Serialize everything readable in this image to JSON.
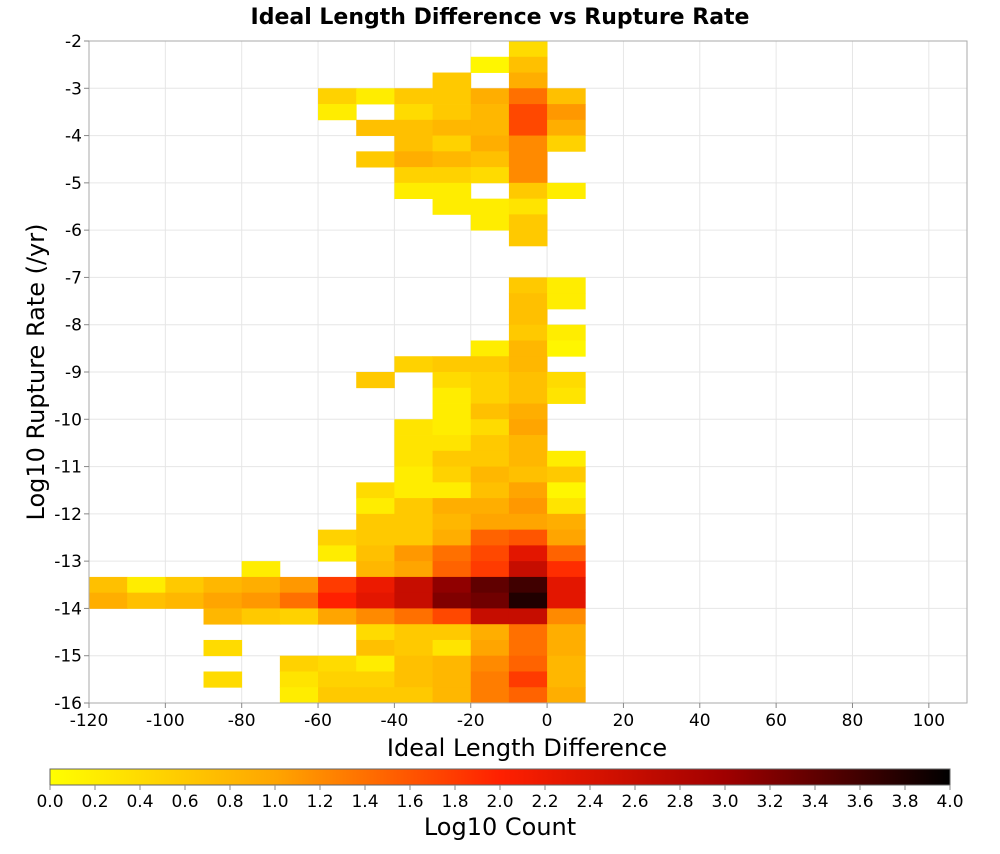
{
  "chart_data": {
    "type": "heatmap",
    "title": "Ideal Length Difference vs Rupture Rate",
    "xlabel": "Ideal Length Difference",
    "ylabel": "Log10 Rupture Rate (/yr)",
    "xlim": [
      -120,
      110
    ],
    "ylim": [
      -16,
      -2
    ],
    "xticks": [
      -120,
      -100,
      -80,
      -60,
      -40,
      -20,
      0,
      20,
      40,
      60,
      80,
      100
    ],
    "yticks": [
      -2,
      -3,
      -4,
      -5,
      -6,
      -7,
      -8,
      -9,
      -10,
      -11,
      -12,
      -13,
      -14,
      -15,
      -16
    ],
    "grid": true,
    "x_bin_width": 10,
    "y_bin_height": 0.3333,
    "colorbar": {
      "label": "Log10 Count",
      "range": [
        0.0,
        4.0
      ],
      "ticks": [
        "0.0",
        "0.2",
        "0.4",
        "0.6",
        "0.8",
        "1.0",
        "1.2",
        "1.4",
        "1.6",
        "1.8",
        "2.0",
        "2.2",
        "2.4",
        "2.6",
        "2.8",
        "3.0",
        "3.2",
        "3.4",
        "3.6",
        "3.8",
        "4.0"
      ],
      "colors": [
        "#ffff00",
        "#ffa500",
        "#ff2000",
        "#a00000",
        "#000000"
      ]
    },
    "cells": [
      [
        -10,
        -2.333,
        0.4
      ],
      [
        -20,
        -2.667,
        0.1
      ],
      [
        -10,
        -2.667,
        0.7
      ],
      [
        -30,
        -3.0,
        0.6
      ],
      [
        -10,
        -3.0,
        0.9
      ],
      [
        -60,
        -3.333,
        0.5
      ],
      [
        -50,
        -3.333,
        0.2
      ],
      [
        -40,
        -3.333,
        0.6
      ],
      [
        -30,
        -3.333,
        0.6
      ],
      [
        -20,
        -3.333,
        0.9
      ],
      [
        -10,
        -3.333,
        1.4
      ],
      [
        0,
        -3.333,
        0.7
      ],
      [
        -60,
        -3.667,
        0.2
      ],
      [
        -40,
        -3.667,
        0.4
      ],
      [
        -30,
        -3.667,
        0.6
      ],
      [
        -20,
        -3.667,
        0.8
      ],
      [
        -10,
        -3.667,
        1.7
      ],
      [
        0,
        -3.667,
        1.1
      ],
      [
        -50,
        -4.0,
        0.7
      ],
      [
        -40,
        -4.0,
        0.7
      ],
      [
        -30,
        -4.0,
        0.8
      ],
      [
        -20,
        -4.0,
        0.8
      ],
      [
        -10,
        -4.0,
        1.7
      ],
      [
        0,
        -4.0,
        0.9
      ],
      [
        -40,
        -4.333,
        0.7
      ],
      [
        -30,
        -4.333,
        0.5
      ],
      [
        -20,
        -4.333,
        0.9
      ],
      [
        -10,
        -4.333,
        1.2
      ],
      [
        0,
        -4.333,
        0.5
      ],
      [
        -50,
        -4.667,
        0.6
      ],
      [
        -40,
        -4.667,
        0.9
      ],
      [
        -30,
        -4.667,
        0.8
      ],
      [
        -20,
        -4.667,
        0.7
      ],
      [
        -10,
        -4.667,
        1.2
      ],
      [
        -40,
        -5.0,
        0.5
      ],
      [
        -30,
        -5.0,
        0.5
      ],
      [
        -20,
        -5.0,
        0.4
      ],
      [
        -10,
        -5.0,
        1.2
      ],
      [
        -40,
        -5.333,
        0.2
      ],
      [
        -30,
        -5.333,
        0.2
      ],
      [
        -10,
        -5.333,
        0.6
      ],
      [
        0,
        -5.333,
        0.2
      ],
      [
        -30,
        -5.667,
        0.2
      ],
      [
        -20,
        -5.667,
        0.2
      ],
      [
        -10,
        -5.667,
        0.3
      ],
      [
        -20,
        -6.0,
        0.2
      ],
      [
        -10,
        -6.0,
        0.6
      ],
      [
        -10,
        -6.333,
        0.6
      ],
      [
        -10,
        -7.333,
        0.6
      ],
      [
        0,
        -7.333,
        0.2
      ],
      [
        -10,
        -7.667,
        0.7
      ],
      [
        0,
        -7.667,
        0.2
      ],
      [
        -10,
        -8.0,
        0.7
      ],
      [
        -10,
        -8.333,
        0.6
      ],
      [
        0,
        -8.333,
        0.2
      ],
      [
        -20,
        -8.667,
        0.2
      ],
      [
        -10,
        -8.667,
        0.8
      ],
      [
        0,
        -8.667,
        0.1
      ],
      [
        -40,
        -9.0,
        0.5
      ],
      [
        -30,
        -9.0,
        0.6
      ],
      [
        -20,
        -9.0,
        0.6
      ],
      [
        -10,
        -9.0,
        0.8
      ],
      [
        -50,
        -9.333,
        0.6
      ],
      [
        -30,
        -9.333,
        0.4
      ],
      [
        -20,
        -9.333,
        0.5
      ],
      [
        -10,
        -9.333,
        0.7
      ],
      [
        0,
        -9.333,
        0.4
      ],
      [
        -30,
        -9.667,
        0.2
      ],
      [
        -20,
        -9.667,
        0.5
      ],
      [
        -10,
        -9.667,
        0.7
      ],
      [
        0,
        -9.667,
        0.3
      ],
      [
        -30,
        -10.0,
        0.2
      ],
      [
        -20,
        -10.0,
        0.7
      ],
      [
        -10,
        -10.0,
        0.9
      ],
      [
        -40,
        -10.333,
        0.3
      ],
      [
        -30,
        -10.333,
        0.2
      ],
      [
        -20,
        -10.333,
        0.4
      ],
      [
        -10,
        -10.333,
        1.0
      ],
      [
        -40,
        -10.667,
        0.3
      ],
      [
        -30,
        -10.667,
        0.3
      ],
      [
        -20,
        -10.667,
        0.6
      ],
      [
        -10,
        -10.667,
        0.8
      ],
      [
        -40,
        -11.0,
        0.3
      ],
      [
        -30,
        -11.0,
        0.6
      ],
      [
        -20,
        -11.0,
        0.6
      ],
      [
        -10,
        -11.0,
        0.8
      ],
      [
        0,
        -11.0,
        0.2
      ],
      [
        -40,
        -11.333,
        0.2
      ],
      [
        -30,
        -11.333,
        0.5
      ],
      [
        -20,
        -11.333,
        0.8
      ],
      [
        -10,
        -11.333,
        0.7
      ],
      [
        0,
        -11.333,
        0.6
      ],
      [
        -50,
        -11.667,
        0.4
      ],
      [
        -40,
        -11.667,
        0.2
      ],
      [
        -30,
        -11.667,
        0.2
      ],
      [
        -20,
        -11.667,
        0.7
      ],
      [
        -10,
        -11.667,
        1.0
      ],
      [
        0,
        -11.667,
        0.1
      ],
      [
        -50,
        -12.0,
        0.2
      ],
      [
        -40,
        -12.0,
        0.6
      ],
      [
        -30,
        -12.0,
        0.9
      ],
      [
        -20,
        -12.0,
        0.9
      ],
      [
        -10,
        -12.0,
        1.1
      ],
      [
        0,
        -12.0,
        0.3
      ],
      [
        -50,
        -12.333,
        0.6
      ],
      [
        -40,
        -12.333,
        0.6
      ],
      [
        -30,
        -12.333,
        0.8
      ],
      [
        -20,
        -12.333,
        1.0
      ],
      [
        -10,
        -12.333,
        1.0
      ],
      [
        0,
        -12.333,
        0.9
      ],
      [
        -60,
        -12.667,
        0.5
      ],
      [
        -50,
        -12.667,
        0.6
      ],
      [
        -40,
        -12.667,
        0.6
      ],
      [
        -30,
        -12.667,
        0.9
      ],
      [
        -20,
        -12.667,
        1.5
      ],
      [
        -10,
        -12.667,
        1.6
      ],
      [
        0,
        -12.667,
        1.0
      ],
      [
        -60,
        -13.0,
        0.2
      ],
      [
        -50,
        -13.0,
        0.7
      ],
      [
        -40,
        -13.0,
        1.1
      ],
      [
        -30,
        -13.0,
        1.4
      ],
      [
        -20,
        -13.0,
        1.7
      ],
      [
        -10,
        -13.0,
        2.3
      ],
      [
        0,
        -13.0,
        1.5
      ],
      [
        -80,
        -13.333,
        0.2
      ],
      [
        -50,
        -13.333,
        0.8
      ],
      [
        -40,
        -13.333,
        1.0
      ],
      [
        -30,
        -13.333,
        1.5
      ],
      [
        -20,
        -13.333,
        1.8
      ],
      [
        -10,
        -13.333,
        2.6
      ],
      [
        0,
        -13.333,
        1.9
      ],
      [
        -120,
        -13.667,
        0.7
      ],
      [
        -110,
        -13.667,
        0.2
      ],
      [
        -100,
        -13.667,
        0.6
      ],
      [
        -90,
        -13.667,
        0.8
      ],
      [
        -80,
        -13.667,
        0.9
      ],
      [
        -70,
        -13.667,
        1.1
      ],
      [
        -60,
        -13.667,
        1.8
      ],
      [
        -50,
        -13.667,
        2.2
      ],
      [
        -40,
        -13.667,
        2.6
      ],
      [
        -30,
        -13.667,
        3.1
      ],
      [
        -20,
        -13.667,
        3.4
      ],
      [
        -10,
        -13.667,
        3.6
      ],
      [
        0,
        -13.667,
        2.3
      ],
      [
        -120,
        -14.0,
        0.9
      ],
      [
        -110,
        -14.0,
        0.7
      ],
      [
        -100,
        -14.0,
        0.8
      ],
      [
        -90,
        -14.0,
        1.0
      ],
      [
        -80,
        -14.0,
        1.1
      ],
      [
        -70,
        -14.0,
        1.4
      ],
      [
        -60,
        -14.0,
        2.0
      ],
      [
        -50,
        -14.0,
        2.3
      ],
      [
        -40,
        -14.0,
        2.6
      ],
      [
        -30,
        -14.0,
        3.2
      ],
      [
        -20,
        -14.0,
        3.3
      ],
      [
        -10,
        -14.0,
        3.8
      ],
      [
        0,
        -14.0,
        2.3
      ],
      [
        -90,
        -14.333,
        0.8
      ],
      [
        -80,
        -14.333,
        0.6
      ],
      [
        -70,
        -14.333,
        0.5
      ],
      [
        -60,
        -14.333,
        1.0
      ],
      [
        -50,
        -14.333,
        1.2
      ],
      [
        -40,
        -14.333,
        1.4
      ],
      [
        -30,
        -14.333,
        1.7
      ],
      [
        -20,
        -14.333,
        2.6
      ],
      [
        -10,
        -14.333,
        2.6
      ],
      [
        0,
        -14.333,
        1.2
      ],
      [
        -50,
        -14.667,
        0.4
      ],
      [
        -40,
        -14.667,
        0.6
      ],
      [
        -30,
        -14.667,
        0.6
      ],
      [
        -20,
        -14.667,
        0.9
      ],
      [
        -10,
        -14.667,
        1.4
      ],
      [
        0,
        -14.667,
        0.9
      ],
      [
        -90,
        -15.0,
        0.4
      ],
      [
        -50,
        -15.0,
        0.7
      ],
      [
        -40,
        -15.0,
        0.6
      ],
      [
        -30,
        -15.0,
        0.3
      ],
      [
        -20,
        -15.0,
        1.0
      ],
      [
        -10,
        -15.0,
        1.4
      ],
      [
        0,
        -15.0,
        0.9
      ],
      [
        -70,
        -15.333,
        0.5
      ],
      [
        -60,
        -15.333,
        0.4
      ],
      [
        -50,
        -15.333,
        0.2
      ],
      [
        -40,
        -15.333,
        0.7
      ],
      [
        -30,
        -15.333,
        0.8
      ],
      [
        -20,
        -15.333,
        1.2
      ],
      [
        -10,
        -15.333,
        1.5
      ],
      [
        0,
        -15.333,
        0.8
      ],
      [
        -90,
        -15.667,
        0.4
      ],
      [
        -70,
        -15.667,
        0.3
      ],
      [
        -60,
        -15.667,
        0.5
      ],
      [
        -50,
        -15.667,
        0.5
      ],
      [
        -40,
        -15.667,
        0.7
      ],
      [
        -30,
        -15.667,
        0.8
      ],
      [
        -20,
        -15.667,
        1.3
      ],
      [
        -10,
        -15.667,
        1.8
      ],
      [
        0,
        -15.667,
        0.8
      ],
      [
        -70,
        -16.0,
        0.2
      ],
      [
        -60,
        -16.0,
        0.6
      ],
      [
        -50,
        -16.0,
        0.6
      ],
      [
        -40,
        -16.0,
        0.6
      ],
      [
        -30,
        -16.0,
        0.8
      ],
      [
        -20,
        -16.0,
        1.3
      ],
      [
        -10,
        -16.0,
        1.5
      ],
      [
        0,
        -16.0,
        0.9
      ],
      [
        -90,
        -16.333,
        0.2
      ],
      [
        -70,
        -16.333,
        0.3
      ],
      [
        -60,
        -16.333,
        0.6
      ],
      [
        -50,
        -16.333,
        0.6
      ],
      [
        -40,
        -16.333,
        0.6
      ],
      [
        -30,
        -16.333,
        0.8
      ],
      [
        -20,
        -16.333,
        1.3
      ],
      [
        -10,
        -16.333,
        1.9
      ],
      [
        0,
        -16.333,
        1.1
      ],
      [
        -110,
        -16.667,
        0.2
      ],
      [
        -80,
        -16.667,
        1.0
      ],
      [
        -70,
        -16.667,
        1.1
      ],
      [
        -60,
        -16.667,
        1.4
      ],
      [
        -50,
        -16.667,
        1.9
      ],
      [
        -40,
        -16.667,
        2.1
      ],
      [
        -30,
        -16.667,
        2.3
      ],
      [
        -20,
        -16.667,
        2.6
      ],
      [
        -10,
        -16.667,
        2.9
      ],
      [
        0,
        -16.667,
        2.3
      ]
    ]
  }
}
